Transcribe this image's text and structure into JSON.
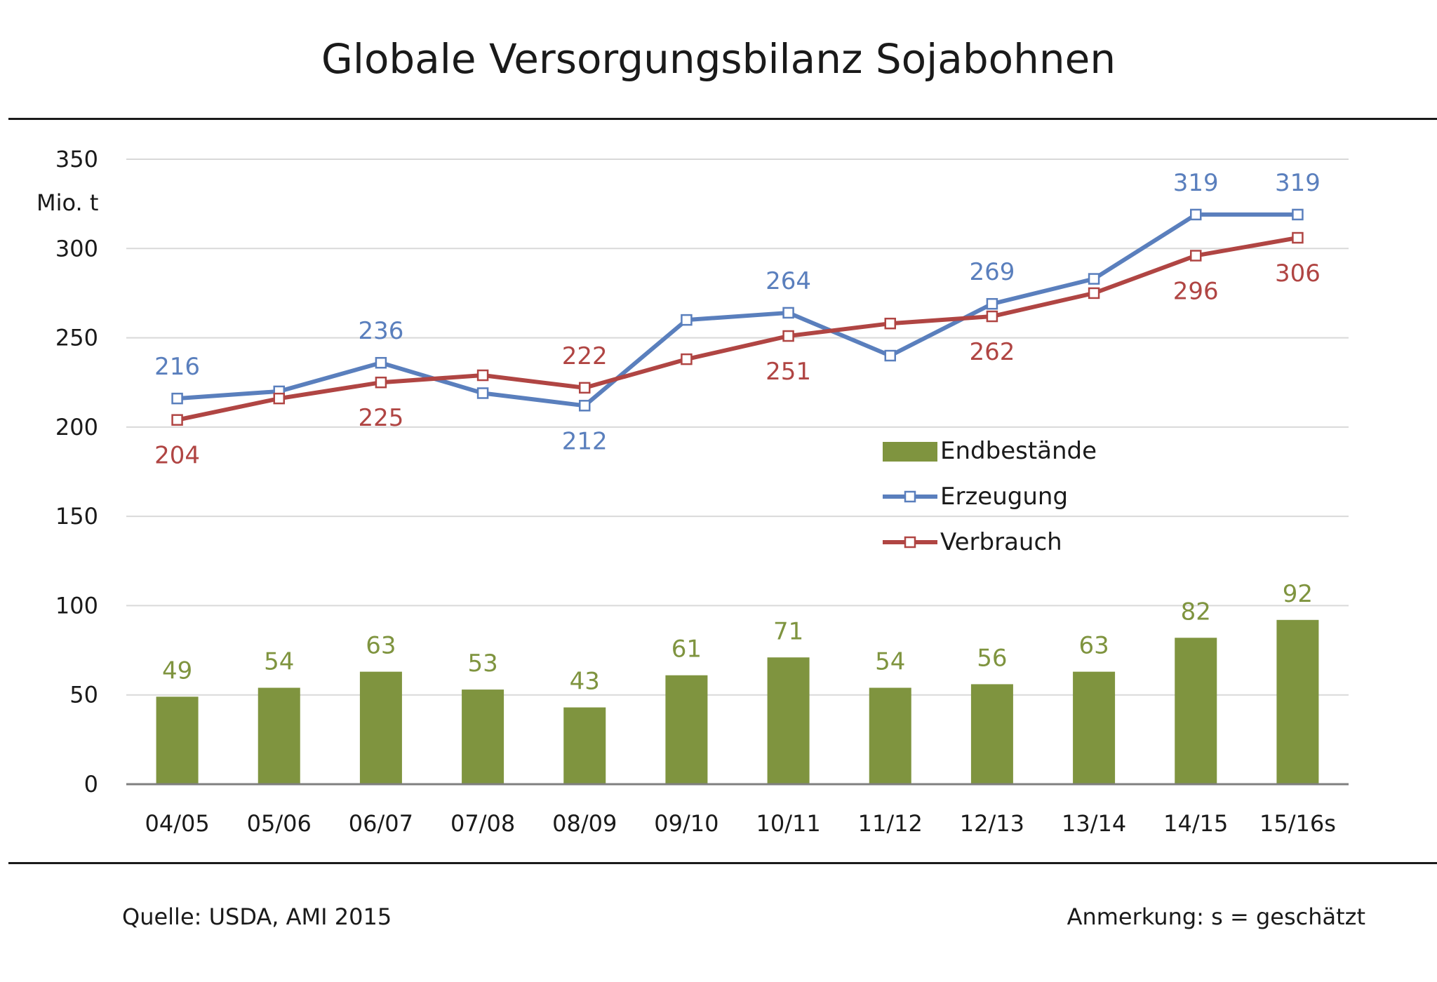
{
  "title": "Globale Versorgungsbilanz Sojabohnen",
  "footer": {
    "source": "Quelle: USDA, AMI 2015",
    "note": "Anmerkung: s = geschätzt"
  },
  "colors": {
    "bars": "#7f943f",
    "erzeugung": "#5a7fbd",
    "verbrauch": "#b04543",
    "grid": "#d9d9d9",
    "axis": "#7f7f7f"
  },
  "chart_data": {
    "type": "bar+line",
    "title": "Globale Versorgungsbilanz Sojabohnen",
    "ylabel": "Mio. t",
    "xlabel": "",
    "ylim": [
      0,
      350
    ],
    "yticks": [
      0,
      50,
      100,
      150,
      200,
      250,
      300,
      350
    ],
    "grid": true,
    "legend_position": "center-right",
    "categories": [
      "04/05",
      "05/06",
      "06/07",
      "07/08",
      "08/09",
      "09/10",
      "10/11",
      "11/12",
      "12/13",
      "13/14",
      "14/15",
      "15/16s"
    ],
    "series": [
      {
        "name": "Endbestände",
        "type": "bar",
        "values": [
          49,
          54,
          63,
          53,
          43,
          61,
          71,
          54,
          56,
          63,
          82,
          92
        ],
        "labels": [
          "49",
          "54",
          "63",
          "53",
          "43",
          "61",
          "71",
          "54",
          "56",
          "63",
          "82",
          "92"
        ]
      },
      {
        "name": "Erzeugung",
        "type": "line",
        "values": [
          216,
          220,
          236,
          219,
          212,
          260,
          264,
          240,
          269,
          283,
          319,
          319
        ],
        "labels": [
          "216",
          "",
          "236",
          "",
          "212",
          "",
          "264",
          "",
          "269",
          "",
          "319",
          "319"
        ]
      },
      {
        "name": "Verbrauch",
        "type": "line",
        "values": [
          204,
          216,
          225,
          229,
          222,
          238,
          251,
          258,
          262,
          275,
          296,
          306
        ],
        "labels": [
          "204",
          "",
          "225",
          "",
          "222",
          "",
          "251",
          "",
          "262",
          "",
          "296",
          "306"
        ]
      }
    ]
  }
}
